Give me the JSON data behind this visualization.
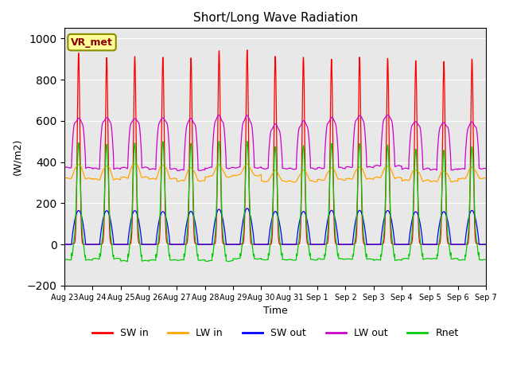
{
  "title": "Short/Long Wave Radiation",
  "xlabel": "Time",
  "ylabel": "(W/m2)",
  "ylim": [
    -200,
    1050
  ],
  "yticks": [
    -200,
    0,
    200,
    400,
    600,
    800,
    1000
  ],
  "legend_labels": [
    "SW in",
    "LW in",
    "SW out",
    "LW out",
    "Rnet"
  ],
  "colors": {
    "SW_in": "#ff0000",
    "LW_in": "#ffa500",
    "SW_out": "#0000ff",
    "LW_out": "#cc00cc",
    "Rnet": "#00cc00"
  },
  "annotation_text": "VR_met",
  "bg_color": "#e8e8e8",
  "n_days": 15,
  "xtick_dates": [
    "Aug 23",
    "Aug 24",
    "Aug 25",
    "Aug 26",
    "Aug 27",
    "Aug 28",
    "Aug 29",
    "Aug 30",
    "Aug 31",
    "Sep 1",
    "Sep 2",
    "Sep 3",
    "Sep 4",
    "Sep 5",
    "Sep 6",
    "Sep 7"
  ]
}
